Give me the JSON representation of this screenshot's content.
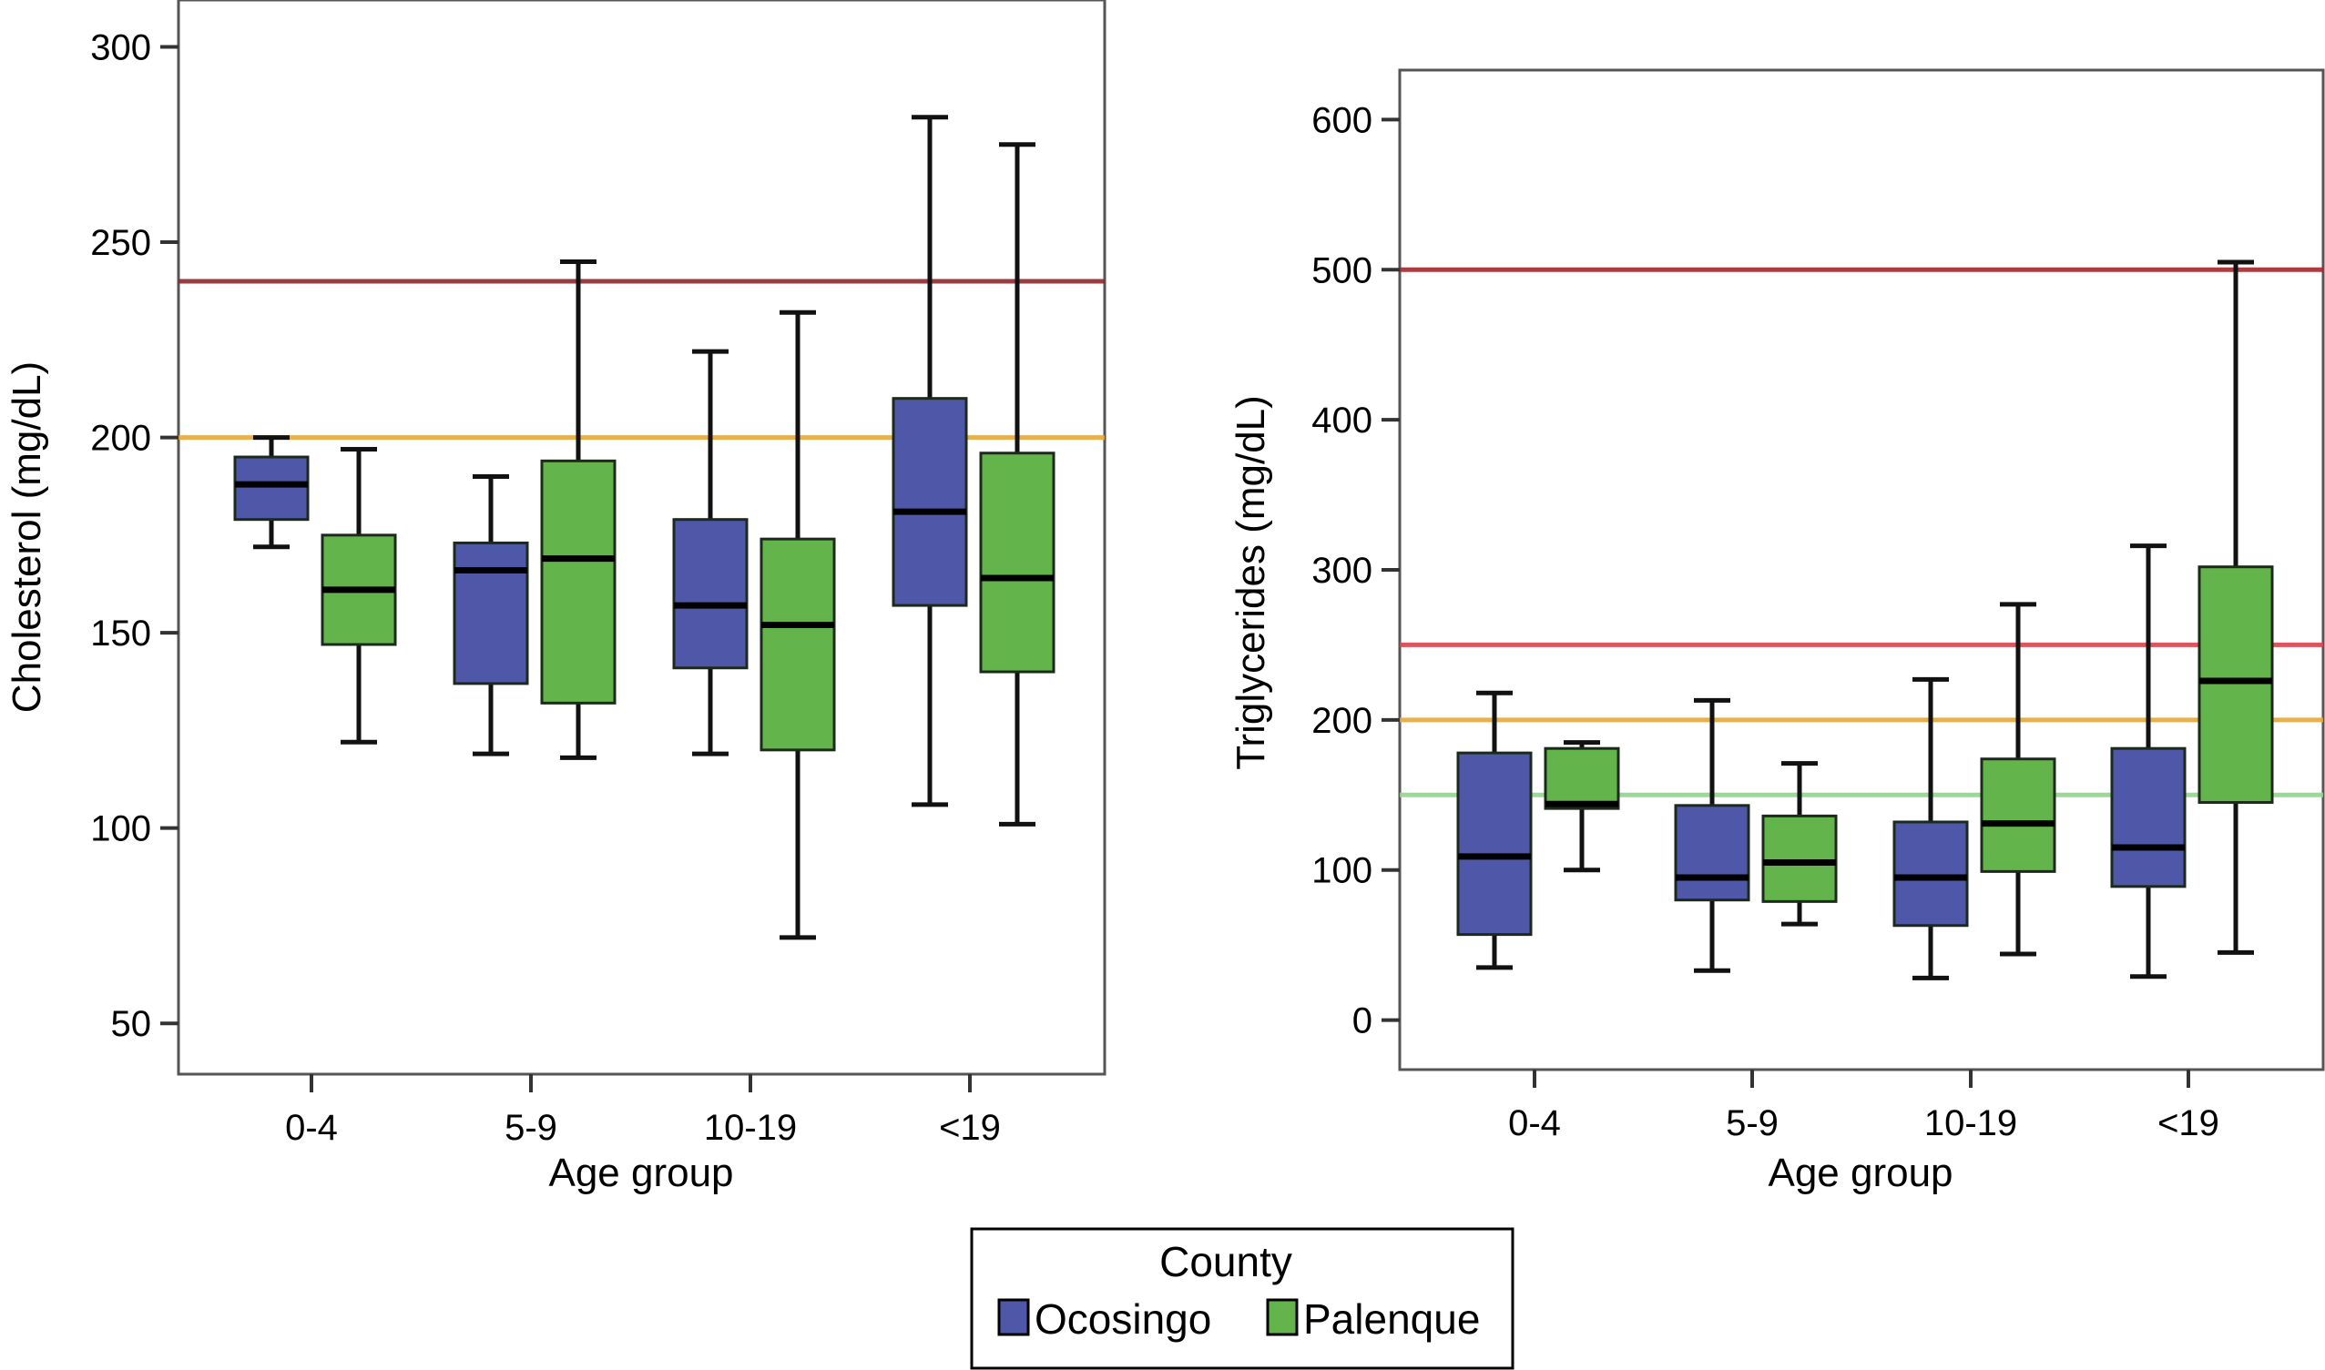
{
  "chart_data": [
    {
      "type": "boxplot",
      "title": "",
      "xlabel": "Age group",
      "ylabel": "Cholesterol (mg/dL)",
      "ylim": [
        37,
        312
      ],
      "yticks": [
        50,
        100,
        150,
        200,
        250,
        300
      ],
      "grid": false,
      "categories": [
        "0-4",
        "5-9",
        "10-19",
        "<19"
      ],
      "reference_lines": [
        {
          "value": 240,
          "color": "#8b2a2e"
        },
        {
          "value": 200,
          "color": "#e5a83a"
        }
      ],
      "series": [
        {
          "name": "Ocosingo",
          "color": "#4f58a8",
          "boxes": [
            {
              "min": 172,
              "q1": 179,
              "median": 188,
              "q3": 195,
              "max": 200
            },
            {
              "min": 119,
              "q1": 137,
              "median": 166,
              "q3": 173,
              "max": 190
            },
            {
              "min": 119,
              "q1": 141,
              "median": 157,
              "q3": 179,
              "max": 222
            },
            {
              "min": 106,
              "q1": 157,
              "median": 181,
              "q3": 210,
              "max": 282
            }
          ]
        },
        {
          "name": "Palenque",
          "color": "#63b54b",
          "boxes": [
            {
              "min": 122,
              "q1": 147,
              "median": 161,
              "q3": 175,
              "max": 197
            },
            {
              "min": 118,
              "q1": 132,
              "median": 169,
              "q3": 194,
              "max": 245
            },
            {
              "min": 72,
              "q1": 120,
              "median": 152,
              "q3": 174,
              "max": 232
            },
            {
              "min": 101,
              "q1": 140,
              "median": 164,
              "q3": 196,
              "max": 275
            }
          ]
        }
      ]
    },
    {
      "type": "boxplot",
      "title": "",
      "xlabel": "Age group",
      "ylabel": "Triglycerides (mg/dL)",
      "ylim": [
        -33,
        633
      ],
      "yticks": [
        0,
        100,
        200,
        300,
        400,
        500,
        600
      ],
      "grid": false,
      "categories": [
        "0-4",
        "5-9",
        "10-19",
        "<19"
      ],
      "reference_lines": [
        {
          "value": 500,
          "color": "#a3272c"
        },
        {
          "value": 250,
          "color": "#d9454c"
        },
        {
          "value": 200,
          "color": "#e5a83a"
        },
        {
          "value": 150,
          "color": "#8fd88a"
        }
      ],
      "series": [
        {
          "name": "Ocosingo",
          "color": "#4f58a8",
          "boxes": [
            {
              "min": 35,
              "q1": 57,
              "median": 109,
              "q3": 178,
              "max": 218
            },
            {
              "min": 33,
              "q1": 80,
              "median": 95,
              "q3": 143,
              "max": 213
            },
            {
              "min": 28,
              "q1": 63,
              "median": 95,
              "q3": 132,
              "max": 227
            },
            {
              "min": 29,
              "q1": 89,
              "median": 115,
              "q3": 181,
              "max": 316
            }
          ]
        },
        {
          "name": "Palenque",
          "color": "#63b54b",
          "boxes": [
            {
              "min": 100,
              "q1": 141,
              "median": 144,
              "q3": 181,
              "max": 185
            },
            {
              "min": 64,
              "q1": 79,
              "median": 105,
              "q3": 136,
              "max": 171
            },
            {
              "min": 44,
              "q1": 99,
              "median": 131,
              "q3": 174,
              "max": 277
            },
            {
              "min": 45,
              "q1": 145,
              "median": 226,
              "q3": 302,
              "max": 505
            }
          ]
        }
      ]
    }
  ],
  "legend": {
    "title": "County",
    "position": "bottom-center",
    "items": [
      {
        "label": "Ocosingo",
        "color": "#4f58a8"
      },
      {
        "label": "Palenque",
        "color": "#63b54b"
      }
    ]
  }
}
